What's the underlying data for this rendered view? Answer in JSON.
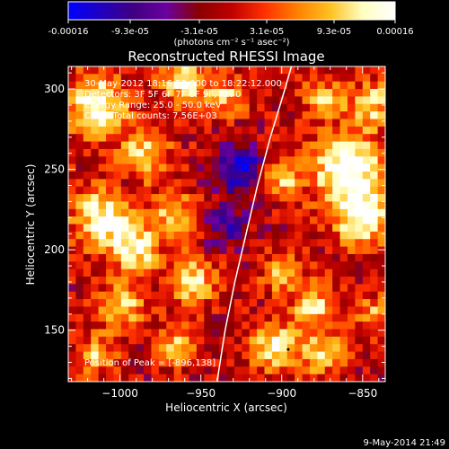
{
  "colorbar": {
    "tick_labels": [
      "-0.00016",
      "-9.3e-05",
      "-3.1e-05",
      "3.1e-05",
      "9.3e-05",
      "0.00016"
    ],
    "units_label": "(photons cm⁻² s⁻¹ asec⁻²)",
    "range": [
      -0.00016,
      0.00016
    ],
    "colors": [
      "#0000ff",
      "#2000c0",
      "#400080",
      "#6a00a0",
      "#8a0000",
      "#c00000",
      "#ff3000",
      "#ff8000",
      "#ffc020",
      "#ffffc0",
      "#ffffff"
    ]
  },
  "chart_data": {
    "type": "heatmap",
    "title": "Reconstructed RHESSI Image",
    "xlabel": "Heliocentric X (arcsec)",
    "ylabel": "Heliocentric Y (arcsec)",
    "xlim": [
      -1032,
      -836
    ],
    "ylim": [
      118,
      314
    ],
    "x_ticks": [
      -1000,
      -950,
      -900,
      -850
    ],
    "y_ticks": [
      150,
      200,
      250,
      300
    ],
    "x_tick_labels": [
      "−1000",
      "−950",
      "−900",
      "−850"
    ],
    "y_tick_labels": [
      "150",
      "200",
      "250",
      "300"
    ],
    "info_lines": [
      "30-May-2012 18:16:58.000 to 18:22:12.000",
      "Detectors: 3F 5F 6F 7F 8F 9F, Att 0",
      "Energy Range: 25.0 - 50.0 keV",
      "Clean      Total counts: 7.56E+03"
    ],
    "peak_label": "Position of Peak = [-896,138]",
    "peak": [
      -896,
      138
    ],
    "limb_curve": [
      [
        -940,
        118
      ],
      [
        -935,
        150
      ],
      [
        -929,
        180
      ],
      [
        -922,
        210
      ],
      [
        -915,
        240
      ],
      [
        -907,
        270
      ],
      [
        -898,
        300
      ],
      [
        -894,
        314
      ]
    ],
    "hotspots": [
      {
        "x": -1015,
        "y": 290,
        "a": 1.0,
        "r": 18
      },
      {
        "x": -985,
        "y": 260,
        "a": 0.7,
        "r": 16
      },
      {
        "x": -1010,
        "y": 220,
        "a": 0.9,
        "r": 20
      },
      {
        "x": -990,
        "y": 200,
        "a": 0.8,
        "r": 14
      },
      {
        "x": -960,
        "y": 305,
        "a": 0.8,
        "r": 14
      },
      {
        "x": -935,
        "y": 295,
        "a": 0.6,
        "r": 12
      },
      {
        "x": -965,
        "y": 220,
        "a": 0.7,
        "r": 14
      },
      {
        "x": -955,
        "y": 180,
        "a": 0.75,
        "r": 14
      },
      {
        "x": -1000,
        "y": 165,
        "a": 0.7,
        "r": 14
      },
      {
        "x": -1015,
        "y": 135,
        "a": 0.6,
        "r": 12
      },
      {
        "x": -965,
        "y": 140,
        "a": 0.6,
        "r": 12
      },
      {
        "x": -900,
        "y": 245,
        "a": 0.6,
        "r": 12
      },
      {
        "x": -860,
        "y": 250,
        "a": 1.0,
        "r": 22
      },
      {
        "x": -850,
        "y": 220,
        "a": 0.9,
        "r": 18
      },
      {
        "x": -845,
        "y": 290,
        "a": 0.7,
        "r": 14
      },
      {
        "x": -875,
        "y": 295,
        "a": 0.6,
        "r": 12
      },
      {
        "x": -900,
        "y": 185,
        "a": 0.55,
        "r": 12
      },
      {
        "x": -880,
        "y": 165,
        "a": 0.7,
        "r": 14
      },
      {
        "x": -905,
        "y": 140,
        "a": 0.8,
        "r": 14
      },
      {
        "x": -875,
        "y": 135,
        "a": 0.6,
        "r": 14
      },
      {
        "x": -845,
        "y": 160,
        "a": 0.5,
        "r": 12
      }
    ],
    "coldspots": [
      {
        "x": -925,
        "y": 250,
        "a": 0.9,
        "r": 14
      },
      {
        "x": -935,
        "y": 215,
        "a": 0.5,
        "r": 14
      },
      {
        "x": -1000,
        "y": 240,
        "a": 0.3,
        "r": 10
      }
    ]
  },
  "footer_date": "9-May-2014 21:49"
}
